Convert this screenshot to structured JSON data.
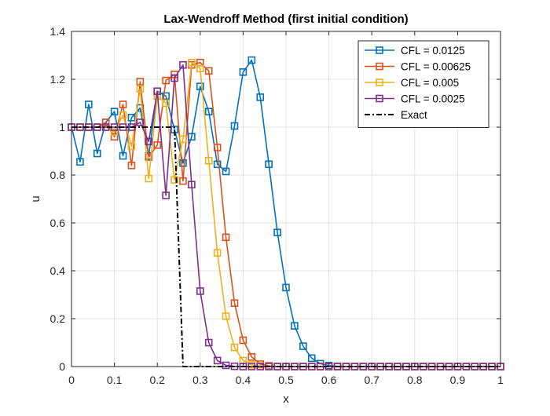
{
  "chart_data": {
    "type": "line",
    "title": "Lax-Wendroff Method (first initial condition)",
    "xlabel": "x",
    "ylabel": "u",
    "xlim": [
      0,
      1
    ],
    "ylim": [
      0,
      1.4
    ],
    "xticks": [
      0,
      0.1,
      0.2,
      0.3,
      0.4,
      0.5,
      0.6,
      0.7,
      0.8,
      0.9,
      1
    ],
    "xtick_labels": [
      "0",
      "0.1",
      "0.2",
      "0.3",
      "0.4",
      "0.5",
      "0.6",
      "0.7",
      "0.8",
      "0.9",
      "1"
    ],
    "yticks": [
      0,
      0.2,
      0.4,
      0.6,
      0.8,
      1,
      1.2,
      1.4
    ],
    "ytick_labels": [
      "0",
      "0.2",
      "0.4",
      "0.6",
      "0.8",
      "1",
      "1.2",
      "1.4"
    ],
    "grid": true,
    "legend_position": "top-right",
    "series": [
      {
        "name": "CFL = 0.0125",
        "color": "#0072BD",
        "style": "solid",
        "marker": "square",
        "x": [
          0,
          0.02,
          0.04,
          0.06,
          0.08,
          0.1,
          0.12,
          0.14,
          0.16,
          0.18,
          0.2,
          0.22,
          0.24,
          0.26,
          0.28,
          0.3,
          0.32,
          0.34,
          0.36,
          0.38,
          0.4,
          0.42,
          0.44,
          0.46,
          0.48,
          0.5,
          0.52,
          0.54,
          0.56,
          0.58,
          0.6,
          0.62,
          0.64,
          0.66,
          0.68,
          0.7,
          0.72,
          0.74,
          0.76,
          0.78,
          0.8,
          0.82,
          0.84,
          0.86,
          0.88,
          0.9,
          0.92,
          0.94,
          0.96,
          0.98,
          1.0
        ],
        "y": [
          1.0,
          0.855,
          1.095,
          0.89,
          1.02,
          1.065,
          0.88,
          1.04,
          1.08,
          0.88,
          1.15,
          1.13,
          0.99,
          0.85,
          0.96,
          1.17,
          1.065,
          0.845,
          0.815,
          1.005,
          1.23,
          1.28,
          1.125,
          0.845,
          0.56,
          0.33,
          0.17,
          0.085,
          0.035,
          0.012,
          0.004,
          0.001,
          0,
          0,
          0,
          0,
          0,
          0,
          0,
          0,
          0,
          0,
          0,
          0,
          0,
          0,
          0,
          0,
          0,
          0,
          0
        ]
      },
      {
        "name": "CFL = 0.00625",
        "color": "#D95319",
        "style": "solid",
        "marker": "square",
        "x": [
          0,
          0.02,
          0.04,
          0.06,
          0.08,
          0.1,
          0.12,
          0.14,
          0.16,
          0.18,
          0.2,
          0.22,
          0.24,
          0.26,
          0.28,
          0.3,
          0.32,
          0.34,
          0.36,
          0.38,
          0.4,
          0.42,
          0.44,
          0.46,
          0.48,
          0.5,
          0.52,
          0.54,
          0.56,
          0.58,
          0.6,
          0.62,
          0.64,
          0.66,
          0.68,
          0.7,
          0.72,
          0.74,
          0.76,
          0.78,
          0.8,
          0.82,
          0.84,
          0.86,
          0.88,
          0.9,
          0.92,
          0.94,
          0.96,
          0.98,
          1.0
        ],
        "y": [
          1.0,
          1.0,
          1.0,
          1.0,
          1.02,
          0.96,
          1.095,
          0.84,
          1.19,
          0.875,
          0.925,
          1.195,
          1.22,
          0.775,
          1.26,
          1.27,
          1.235,
          0.915,
          0.54,
          0.265,
          0.11,
          0.04,
          0.01,
          0.003,
          0,
          0,
          0,
          0,
          0,
          0,
          0,
          0,
          0,
          0,
          0,
          0,
          0,
          0,
          0,
          0,
          0,
          0,
          0,
          0,
          0,
          0,
          0,
          0,
          0,
          0,
          0
        ]
      },
      {
        "name": "CFL = 0.005",
        "color": "#EDB120",
        "style": "solid",
        "marker": "square",
        "x": [
          0,
          0.02,
          0.04,
          0.06,
          0.08,
          0.1,
          0.12,
          0.14,
          0.16,
          0.18,
          0.2,
          0.22,
          0.24,
          0.26,
          0.28,
          0.3,
          0.32,
          0.34,
          0.36,
          0.38,
          0.4,
          0.42,
          0.44,
          0.46,
          0.48,
          0.5,
          0.52,
          0.54,
          0.56,
          0.58,
          0.6,
          0.62,
          0.64,
          0.66,
          0.68,
          0.7,
          0.72,
          0.74,
          0.76,
          0.78,
          0.8,
          0.82,
          0.84,
          0.86,
          0.88,
          0.9,
          0.92,
          0.94,
          0.96,
          0.98,
          1.0
        ],
        "y": [
          1.0,
          1.0,
          1.0,
          1.0,
          1.0,
          0.98,
          1.05,
          0.92,
          1.16,
          0.785,
          1.13,
          1.1,
          0.78,
          0.95,
          1.27,
          1.245,
          0.86,
          0.475,
          0.21,
          0.08,
          0.025,
          0.007,
          0.002,
          0,
          0,
          0,
          0,
          0,
          0,
          0,
          0,
          0,
          0,
          0,
          0,
          0,
          0,
          0,
          0,
          0,
          0,
          0,
          0,
          0,
          0,
          0,
          0,
          0,
          0,
          0,
          0
        ]
      },
      {
        "name": "CFL = 0.0025",
        "color": "#7E2F8E",
        "style": "solid",
        "marker": "square",
        "x": [
          0,
          0.02,
          0.04,
          0.06,
          0.08,
          0.1,
          0.12,
          0.14,
          0.16,
          0.18,
          0.2,
          0.22,
          0.24,
          0.26,
          0.28,
          0.3,
          0.32,
          0.34,
          0.36,
          0.38,
          0.4,
          0.42,
          0.44,
          0.46,
          0.48,
          0.5,
          0.52,
          0.54,
          0.56,
          0.58,
          0.6,
          0.62,
          0.64,
          0.66,
          0.68,
          0.7,
          0.72,
          0.74,
          0.76,
          0.78,
          0.8,
          0.82,
          0.84,
          0.86,
          0.88,
          0.9,
          0.92,
          0.94,
          0.96,
          0.98,
          1.0
        ],
        "y": [
          1.0,
          1.0,
          1.0,
          1.0,
          1.0,
          1.0,
          1.0,
          1.0,
          1.02,
          0.94,
          1.15,
          0.715,
          1.205,
          1.26,
          0.76,
          0.315,
          0.1,
          0.025,
          0.005,
          0.001,
          0,
          0,
          0,
          0,
          0,
          0,
          0,
          0,
          0,
          0,
          0,
          0,
          0,
          0,
          0,
          0,
          0,
          0,
          0,
          0,
          0,
          0,
          0,
          0,
          0,
          0,
          0,
          0,
          0,
          0,
          0
        ]
      },
      {
        "name": "Exact",
        "color": "#000000",
        "style": "dash-dot",
        "marker": "none",
        "x": [
          0,
          0.24,
          0.26,
          1.0
        ],
        "y": [
          1,
          1,
          0,
          0
        ]
      }
    ]
  }
}
